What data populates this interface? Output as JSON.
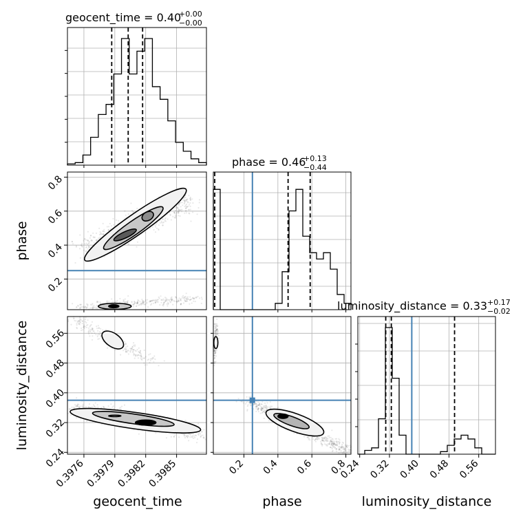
{
  "figure": {
    "kind": "corner plot",
    "params": [
      "geocent_time",
      "phase",
      "luminosity_distance"
    ],
    "colors": {
      "truth": "#4682b4",
      "hist": "#000000",
      "grid": "#b0b0b0",
      "density": "#000000",
      "quantile": "#000000"
    }
  },
  "chart_data": [
    {
      "type": "bar",
      "subtype": "histogram",
      "param": "geocent_time",
      "title": "geocent_time = 0.40",
      "title_value": "0.40",
      "title_plus": "+0.00",
      "title_minus": "−0.00",
      "xlim": [
        0.39744,
        0.39879
      ],
      "ylim": [
        0,
        1
      ],
      "bins": [
        0.39744,
        0.39882
      ],
      "counts": [
        0.01,
        0.02,
        0.08,
        0.22,
        0.4,
        0.48,
        0.72,
        1.0,
        0.72,
        0.9,
        1.0,
        0.62,
        0.52,
        0.35,
        0.18,
        0.11,
        0.05,
        0.02
      ],
      "quantiles": [
        0.39787,
        0.39803,
        0.39817
      ],
      "grid": true,
      "ticks_hidden": true
    },
    {
      "type": "scatter",
      "subtype": "2d-density",
      "params": [
        "geocent_time",
        "phase"
      ],
      "xlim": [
        0.39744,
        0.39879
      ],
      "ylim": [
        0.02,
        0.83
      ],
      "yticks": [
        "0.2",
        "0.4",
        "0.6",
        "0.8"
      ],
      "ylabel": "phase",
      "truth_y": 0.25,
      "grid": true
    },
    {
      "type": "bar",
      "subtype": "histogram",
      "param": "phase",
      "title": "phase = 0.46",
      "title_value": "0.46",
      "title_plus": "+0.13",
      "title_minus": "−0.44",
      "xlim": [
        0.02,
        0.83
      ],
      "ylim": [
        0,
        1
      ],
      "counts": [
        0.95,
        0,
        0,
        0,
        0,
        0,
        0,
        0,
        0,
        0.05,
        0.3,
        0.78,
        0.95,
        0.58,
        0.45,
        0.4,
        0.45,
        0.32,
        0.12,
        0.05
      ],
      "quantiles": [
        0.02,
        0.46,
        0.59
      ],
      "truth_x": 0.25,
      "grid": true,
      "ticks_hidden": true
    },
    {
      "type": "scatter",
      "subtype": "2d-density",
      "params": [
        "geocent_time",
        "luminosity_distance"
      ],
      "xlim": [
        0.39744,
        0.39879
      ],
      "ylim": [
        0.235,
        0.605
      ],
      "xticks": [
        "0.3976",
        "0.3979",
        "0.3982",
        "0.3985"
      ],
      "yticks": [
        "0.24",
        "0.32",
        "0.40",
        "0.48",
        "0.56"
      ],
      "xlabel": "geocent_time",
      "ylabel": "luminosity_distance",
      "truth_y": 0.38,
      "grid": true
    },
    {
      "type": "scatter",
      "subtype": "2d-density",
      "params": [
        "phase",
        "luminosity_distance"
      ],
      "xlim": [
        0.02,
        0.83
      ],
      "ylim": [
        0.235,
        0.605
      ],
      "xticks": [
        "0.2",
        "0.4",
        "0.6",
        "0.8"
      ],
      "xlabel": "phase",
      "truth_x": 0.25,
      "truth_y": 0.38,
      "grid": true
    },
    {
      "type": "bar",
      "subtype": "histogram",
      "param": "luminosity_distance",
      "title": "luminosity_distance = 0.33",
      "title_value": "0.33",
      "title_plus": "+0.17",
      "title_minus": "−0.02",
      "xlim": [
        0.235,
        0.605
      ],
      "ylim": [
        0,
        1
      ],
      "counts": [
        0.0,
        0.03,
        0.05,
        0.28,
        1.0,
        0.6,
        0.15,
        0.0,
        0.0,
        0.0,
        0.0,
        0.0,
        0.02,
        0.07,
        0.12,
        0.15,
        0.12,
        0.05,
        0.0,
        0.0
      ],
      "quantiles": [
        0.31,
        0.325,
        0.495
      ],
      "truth_x": 0.38,
      "xticks": [
        "0.24",
        "0.32",
        "0.40",
        "0.48",
        "0.56"
      ],
      "xlabel": "luminosity_distance",
      "grid": true,
      "ticks_hidden": true
    }
  ]
}
